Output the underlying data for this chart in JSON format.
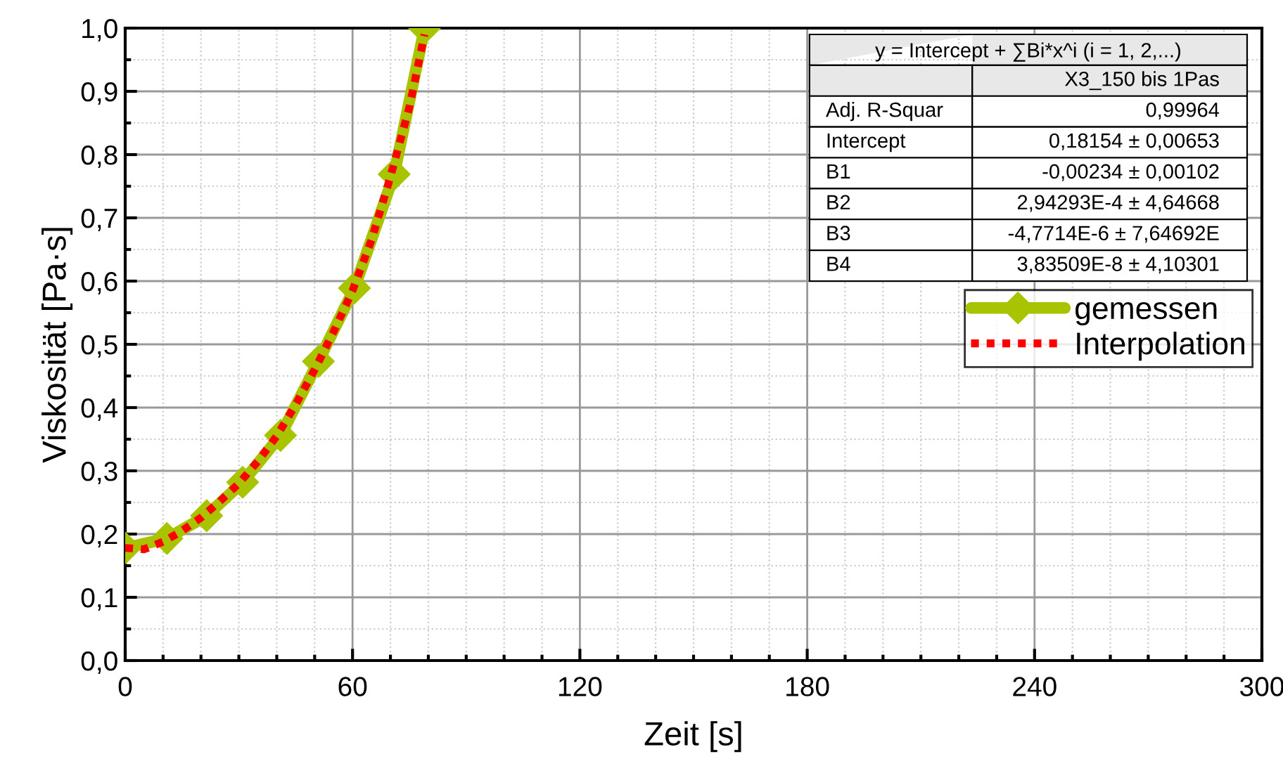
{
  "chart_data": {
    "type": "line",
    "xlabel": "Zeit [s]",
    "ylabel": "Viskosität [Pa·s]",
    "xlim": [
      0,
      300
    ],
    "xticks": [
      0,
      60,
      120,
      180,
      240,
      300
    ],
    "ylim": [
      0,
      1
    ],
    "yticks": [
      {
        "value": 0,
        "label": "0,0"
      },
      {
        "value": 0.1,
        "label": "0,1"
      },
      {
        "value": 0.2,
        "label": "0,2"
      },
      {
        "value": 0.3,
        "label": "0,3"
      },
      {
        "value": 0.4,
        "label": "0,4"
      },
      {
        "value": 0.5,
        "label": "0,5"
      },
      {
        "value": 0.6,
        "label": "0,6"
      },
      {
        "value": 0.7,
        "label": "0,7"
      },
      {
        "value": 0.8,
        "label": "0,8"
      },
      {
        "value": 0.9,
        "label": "0,9"
      },
      {
        "value": 1,
        "label": "1,0"
      }
    ],
    "grid": true,
    "legend": "center right",
    "series": [
      {
        "name": "gemessen",
        "color": "#a8c400",
        "marker": "diamond",
        "line_style": "solid",
        "x": [
          0,
          11,
          21.5,
          31,
          41,
          51,
          60.5,
          71,
          79
        ],
        "values": [
          0.178,
          0.193,
          0.229,
          0.282,
          0.356,
          0.473,
          0.589,
          0.769,
          1.0
        ]
      },
      {
        "name": "Interpolation",
        "color": "#ff0000",
        "marker": "none",
        "line_style": "dotted",
        "x": [
          0,
          5,
          10,
          15,
          20,
          25,
          30,
          35,
          40,
          45,
          50,
          55,
          60,
          65,
          70,
          75,
          79
        ],
        "values": [
          0.178,
          0.176,
          0.188,
          0.205,
          0.226,
          0.252,
          0.28,
          0.315,
          0.355,
          0.405,
          0.46,
          0.52,
          0.585,
          0.665,
          0.765,
          0.875,
          0.99
        ]
      }
    ],
    "annotations": [
      "y = Intercept + ∑Bi*x^i (i = 1, 2,...)",
      "X3_150 bis 1Pas",
      "Adj. R-Squar",
      "0,99964",
      "Intercept",
      "0,18154 ± 0,00653",
      "B1",
      "-0,00234 ± 0,00102",
      "B2",
      "2,94293E-4 ± 4,64668",
      "B3",
      "-4,7714E-6 ± 7,64692E",
      "B4",
      "3,83509E-8 ± 4,10301"
    ]
  }
}
